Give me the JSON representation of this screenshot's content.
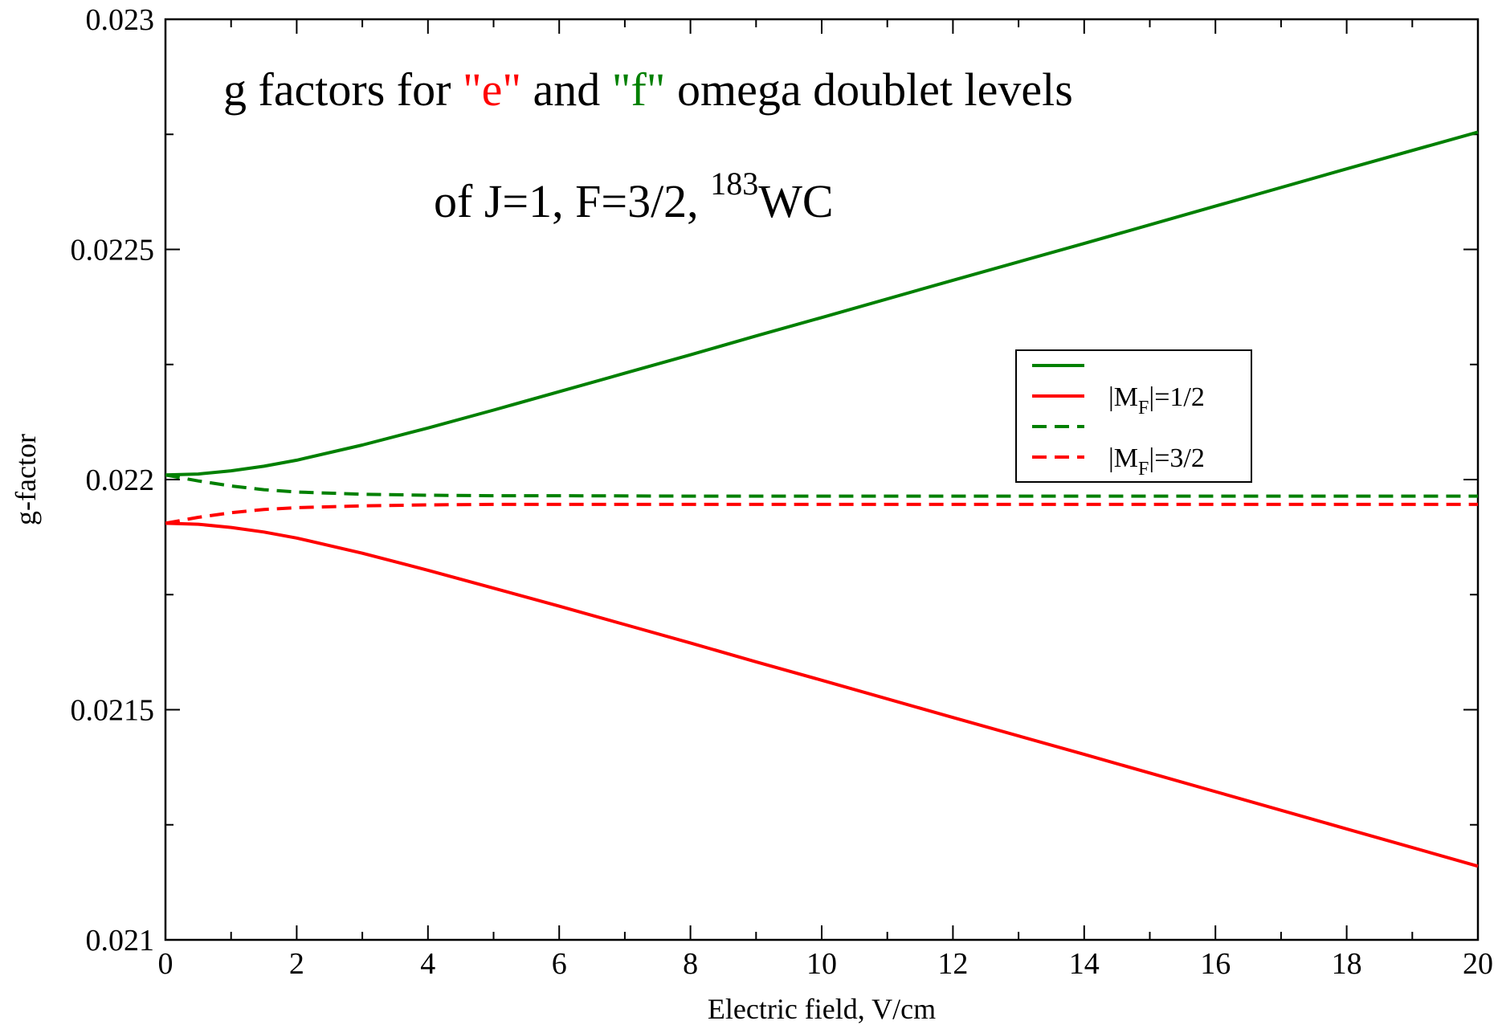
{
  "chart_data": {
    "type": "line",
    "title_parts": [
      {
        "text": "g factors for ",
        "color": "#000000"
      },
      {
        "text": "\"e\"",
        "color": "#ff0000"
      },
      {
        "text": " and ",
        "color": "#000000"
      },
      {
        "text": "\"f\"",
        "color": "#008000"
      },
      {
        "text": " omega doublet levels",
        "color": "#000000"
      }
    ],
    "subtitle_prefix": "of J=1, F=3/2, ",
    "subtitle_superscript": "183",
    "subtitle_suffix": "WC",
    "xlabel": "Electric field, V/cm",
    "ylabel": "g-factor",
    "xlim": [
      0,
      20
    ],
    "ylim": [
      0.021,
      0.023
    ],
    "x_major_ticks": [
      0,
      2,
      4,
      6,
      8,
      10,
      12,
      14,
      16,
      18,
      20
    ],
    "x_tick_labels": [
      "0",
      "2",
      "4",
      "6",
      "8",
      "10",
      "12",
      "14",
      "16",
      "18",
      "20"
    ],
    "x_minor_step": 1,
    "y_major_ticks": [
      0.021,
      0.0215,
      0.022,
      0.0225,
      0.023
    ],
    "y_tick_labels": [
      "0.021",
      "0.0215",
      "0.022",
      "0.0225",
      "0.023"
    ],
    "y_minor_step": 0.00025,
    "grid": false,
    "legend_position": "right",
    "legend": [
      {
        "label_main": "",
        "label_sub": "",
        "label_tail": "",
        "color": "#008000",
        "dashed": false
      },
      {
        "label_main": "|M",
        "label_sub": "F",
        "label_tail": "|=1/2",
        "color": "#ff0000",
        "dashed": false
      },
      {
        "label_main": "",
        "label_sub": "",
        "label_tail": "",
        "color": "#008000",
        "dashed": true
      },
      {
        "label_main": "|M",
        "label_sub": "F",
        "label_tail": "|=3/2",
        "color": "#ff0000",
        "dashed": true
      }
    ],
    "series": [
      {
        "color": "#008000",
        "dashed": false,
        "x": [
          0,
          0.5,
          1,
          1.5,
          2,
          3,
          4,
          5,
          6,
          7,
          8,
          9,
          10,
          12,
          14,
          16,
          18,
          20
        ],
        "y": [
          0.02201,
          0.022012,
          0.022019,
          0.022029,
          0.022042,
          0.022075,
          0.022112,
          0.022151,
          0.022191,
          0.022231,
          0.022271,
          0.022312,
          0.022352,
          0.022433,
          0.022513,
          0.022594,
          0.022675,
          0.022755
        ]
      },
      {
        "color": "#ff0000",
        "dashed": false,
        "x": [
          0,
          0.5,
          1,
          1.5,
          2,
          3,
          4,
          5,
          6,
          7,
          8,
          9,
          10,
          12,
          14,
          16,
          18,
          20
        ],
        "y": [
          0.021905,
          0.021903,
          0.021896,
          0.021886,
          0.021873,
          0.02184,
          0.021803,
          0.021764,
          0.021725,
          0.021685,
          0.021645,
          0.021604,
          0.021564,
          0.021483,
          0.021403,
          0.021322,
          0.021241,
          0.02116
        ]
      },
      {
        "color": "#008000",
        "dashed": true,
        "x": [
          0,
          0.5,
          1,
          1.5,
          2,
          3,
          4,
          5,
          6,
          8,
          10,
          12,
          14,
          16,
          18,
          20
        ],
        "y": [
          0.02201,
          0.021997,
          0.021986,
          0.021978,
          0.021973,
          0.021968,
          0.021966,
          0.021965,
          0.021965,
          0.021964,
          0.021964,
          0.021964,
          0.021964,
          0.021964,
          0.021964,
          0.021964
        ]
      },
      {
        "color": "#ff0000",
        "dashed": true,
        "x": [
          0,
          0.5,
          1,
          1.5,
          2,
          3,
          4,
          5,
          6,
          8,
          10,
          12,
          14,
          16,
          18,
          20
        ],
        "y": [
          0.021905,
          0.021918,
          0.021928,
          0.021935,
          0.021939,
          0.021943,
          0.021945,
          0.021946,
          0.021946,
          0.021946,
          0.021946,
          0.021946,
          0.021946,
          0.021946,
          0.021946,
          0.021946
        ]
      }
    ]
  }
}
